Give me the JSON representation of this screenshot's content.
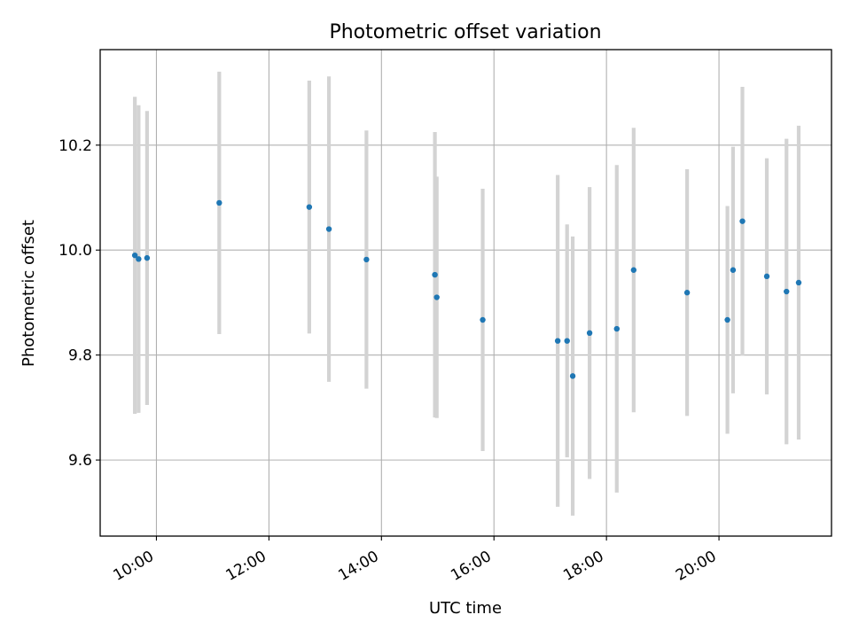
{
  "chart_data": {
    "type": "scatter",
    "title": "Photometric offset variation",
    "xlabel": "UTC time",
    "ylabel": "Photometric offset",
    "x_tick_labels": [
      "10:00",
      "12:00",
      "14:00",
      "16:00",
      "18:00",
      "20:00"
    ],
    "x_tick_values": [
      "10:00",
      "12:00",
      "14:00",
      "16:00",
      "18:00",
      "20:00"
    ],
    "y_tick_values": [
      9.6,
      9.8,
      10.0,
      10.2
    ],
    "y_tick_labels": [
      "9.6",
      "9.8",
      "10.0",
      "10.2"
    ],
    "xlim": [
      "09:00",
      "22:00"
    ],
    "ylim": [
      9.455,
      10.382
    ],
    "grid": true,
    "point_color": "#1f77b4",
    "errorbar_color": "#d3d3d3",
    "series": [
      {
        "points": [
          {
            "x": "09:37",
            "y": 9.99,
            "err": 0.302
          },
          {
            "x": "09:41",
            "y": 9.983,
            "err": 0.293
          },
          {
            "x": "09:50",
            "y": 9.985,
            "err": 0.28
          },
          {
            "x": "11:07",
            "y": 10.09,
            "err": 0.25
          },
          {
            "x": "12:43",
            "y": 10.082,
            "err": 0.241
          },
          {
            "x": "13:04",
            "y": 10.04,
            "err": 0.291
          },
          {
            "x": "13:44",
            "y": 9.982,
            "err": 0.246
          },
          {
            "x": "14:57",
            "y": 9.953,
            "err": 0.272
          },
          {
            "x": "14:59",
            "y": 9.91,
            "err": 0.23
          },
          {
            "x": "15:48",
            "y": 9.867,
            "err": 0.25
          },
          {
            "x": "17:08",
            "y": 9.827,
            "err": 0.316
          },
          {
            "x": "17:18",
            "y": 9.827,
            "err": 0.222
          },
          {
            "x": "17:24",
            "y": 9.76,
            "err": 0.266
          },
          {
            "x": "17:42",
            "y": 9.842,
            "err": 0.278
          },
          {
            "x": "18:11",
            "y": 9.85,
            "err": 0.312
          },
          {
            "x": "18:29",
            "y": 9.962,
            "err": 0.271
          },
          {
            "x": "19:26",
            "y": 9.919,
            "err": 0.235
          },
          {
            "x": "20:09",
            "y": 9.867,
            "err": 0.217
          },
          {
            "x": "20:15",
            "y": 9.962,
            "err": 0.235
          },
          {
            "x": "20:25",
            "y": 10.055,
            "err": 0.256
          },
          {
            "x": "20:51",
            "y": 9.95,
            "err": 0.225
          },
          {
            "x": "21:12",
            "y": 9.921,
            "err": 0.291
          },
          {
            "x": "21:25",
            "y": 9.938,
            "err": 0.299
          }
        ]
      }
    ]
  }
}
